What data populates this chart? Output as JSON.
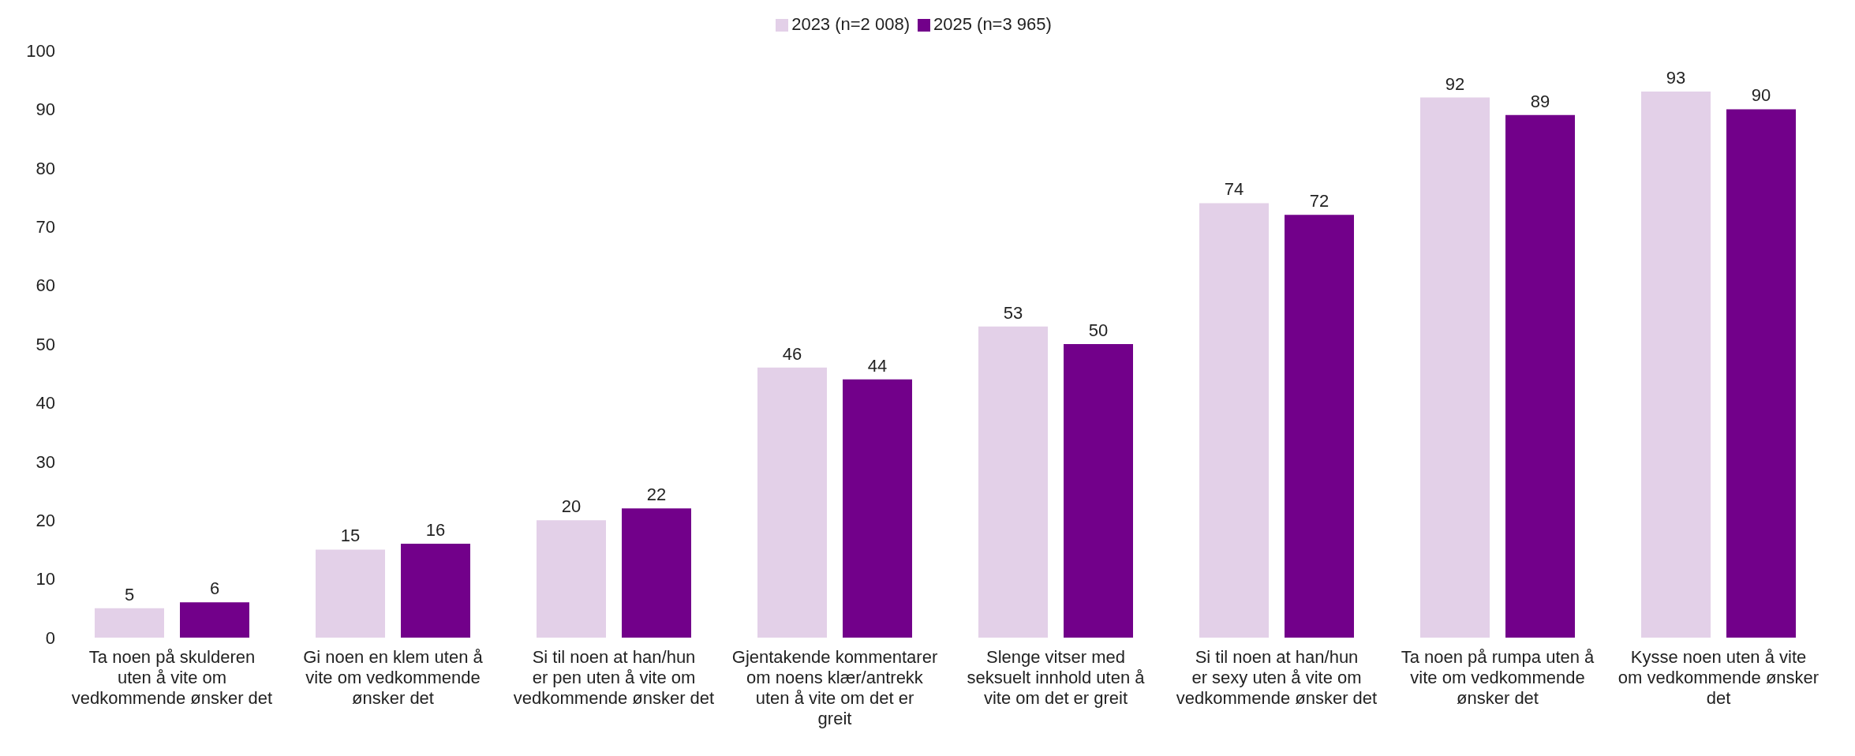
{
  "chart_data": {
    "type": "bar",
    "categories": [
      "Ta noen på skulderen uten å vite om vedkommende ønsker det",
      "Gi noen en klem uten å vite om vedkommende ønsker det",
      "Si til noen at han/hun er pen uten å vite om vedkommende ønsker det",
      "Gjentakende kommentarer om noens klær/antrekk uten å vite om det er greit",
      "Slenge vitser med seksuelt innhold uten å vite om det er greit",
      "Si til noen at han/hun er sexy uten å vite om vedkommende ønsker det",
      "Ta noen på rumpa uten å vite om vedkommende ønsker det",
      "Kysse noen uten å vite om vedkommende ønsker det"
    ],
    "series": [
      {
        "name": "2023 (n=2 008)",
        "color": "#e3d0e8",
        "values": [
          5,
          15,
          20,
          46,
          53,
          74,
          92,
          93
        ]
      },
      {
        "name": "2025 (n=3 965)",
        "color": "#72008a",
        "values": [
          6,
          16,
          22,
          44,
          50,
          72,
          89,
          90
        ]
      }
    ],
    "ylim": [
      0,
      100
    ],
    "yticks": [
      0,
      10,
      20,
      30,
      40,
      50,
      60,
      70,
      80,
      90,
      100
    ],
    "legend": "top",
    "data_labels": true
  }
}
